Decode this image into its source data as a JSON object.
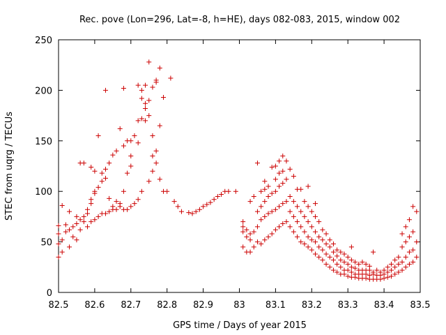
{
  "chart_data": {
    "type": "scatter",
    "title": "Rec. pove (Lon=296, Lat=-8, h=HE), days 082-083, 2015, window 002",
    "xlabel": "GPS time / Days of year 2015",
    "ylabel": "STEC from uqrg / TECUs",
    "xlim": [
      82.5,
      83.5
    ],
    "ylim": [
      0,
      250
    ],
    "xticks": [
      "82.5",
      "82.6",
      "82.7",
      "82.8",
      "82.9",
      "83",
      "83.1",
      "83.2",
      "83.3",
      "83.4",
      "83.5"
    ],
    "yticks": [
      "0",
      "50",
      "100",
      "150",
      "200",
      "250"
    ],
    "grid": false,
    "marker": "plus",
    "color": "#cc0000",
    "series": [
      {
        "name": "STEC",
        "points": [
          [
            82.5,
            35
          ],
          [
            82.5,
            48
          ],
          [
            82.5,
            58
          ],
          [
            82.5,
            66
          ],
          [
            82.51,
            40
          ],
          [
            82.51,
            52
          ],
          [
            82.51,
            86
          ],
          [
            82.52,
            60
          ],
          [
            82.52,
            67
          ],
          [
            82.53,
            45
          ],
          [
            82.53,
            62
          ],
          [
            82.53,
            80
          ],
          [
            82.54,
            55
          ],
          [
            82.54,
            65
          ],
          [
            82.55,
            52
          ],
          [
            82.55,
            68
          ],
          [
            82.55,
            75
          ],
          [
            82.56,
            62
          ],
          [
            82.56,
            72
          ],
          [
            82.56,
            128
          ],
          [
            82.57,
            70
          ],
          [
            82.57,
            75
          ],
          [
            82.57,
            128
          ],
          [
            82.58,
            65
          ],
          [
            82.58,
            78
          ],
          [
            82.58,
            82
          ],
          [
            82.59,
            70
          ],
          [
            82.59,
            88
          ],
          [
            82.59,
            92
          ],
          [
            82.59,
            124
          ],
          [
            82.6,
            72
          ],
          [
            82.6,
            98
          ],
          [
            82.6,
            100
          ],
          [
            82.6,
            120
          ],
          [
            82.61,
            75
          ],
          [
            82.61,
            104
          ],
          [
            82.61,
            155
          ],
          [
            82.62,
            78
          ],
          [
            82.62,
            110
          ],
          [
            82.62,
            118
          ],
          [
            82.63,
            78
          ],
          [
            82.63,
            113
          ],
          [
            82.63,
            122
          ],
          [
            82.63,
            200
          ],
          [
            82.64,
            80
          ],
          [
            82.64,
            93
          ],
          [
            82.64,
            128
          ],
          [
            82.65,
            82
          ],
          [
            82.65,
            85
          ],
          [
            82.65,
            136
          ],
          [
            82.66,
            82
          ],
          [
            82.66,
            90
          ],
          [
            82.66,
            140
          ],
          [
            82.67,
            85
          ],
          [
            82.67,
            88
          ],
          [
            82.67,
            162
          ],
          [
            82.68,
            82
          ],
          [
            82.68,
            100
          ],
          [
            82.68,
            145
          ],
          [
            82.68,
            202
          ],
          [
            82.69,
            82
          ],
          [
            82.69,
            118
          ],
          [
            82.69,
            150
          ],
          [
            82.7,
            85
          ],
          [
            82.7,
            125
          ],
          [
            82.7,
            135
          ],
          [
            82.7,
            150
          ],
          [
            82.71,
            88
          ],
          [
            82.71,
            155
          ],
          [
            82.72,
            92
          ],
          [
            82.72,
            148
          ],
          [
            82.72,
            170
          ],
          [
            82.72,
            205
          ],
          [
            82.73,
            100
          ],
          [
            82.73,
            172
          ],
          [
            82.73,
            192
          ],
          [
            82.73,
            200
          ],
          [
            82.74,
            170
          ],
          [
            82.74,
            182
          ],
          [
            82.74,
            187
          ],
          [
            82.74,
            205
          ],
          [
            82.75,
            110
          ],
          [
            82.75,
            175
          ],
          [
            82.75,
            190
          ],
          [
            82.75,
            228
          ],
          [
            82.76,
            120
          ],
          [
            82.76,
            135
          ],
          [
            82.76,
            155
          ],
          [
            82.76,
            203
          ],
          [
            82.77,
            128
          ],
          [
            82.77,
            140
          ],
          [
            82.77,
            208
          ],
          [
            82.77,
            210
          ],
          [
            82.78,
            112
          ],
          [
            82.78,
            165
          ],
          [
            82.78,
            222
          ],
          [
            82.79,
            100
          ],
          [
            82.79,
            193
          ],
          [
            82.8,
            100
          ],
          [
            82.81,
            212
          ],
          [
            82.82,
            90
          ],
          [
            82.83,
            85
          ],
          [
            82.84,
            80
          ],
          [
            82.86,
            79
          ],
          [
            82.87,
            78
          ],
          [
            82.88,
            80
          ],
          [
            82.89,
            82
          ],
          [
            82.9,
            85
          ],
          [
            82.91,
            87
          ],
          [
            82.92,
            89
          ],
          [
            82.93,
            92
          ],
          [
            82.94,
            95
          ],
          [
            82.95,
            97
          ],
          [
            82.96,
            100
          ],
          [
            82.97,
            100
          ],
          [
            82.99,
            100
          ],
          [
            83.01,
            45
          ],
          [
            83.01,
            60
          ],
          [
            83.01,
            65
          ],
          [
            83.01,
            70
          ],
          [
            83.02,
            40
          ],
          [
            83.02,
            55
          ],
          [
            83.02,
            62
          ],
          [
            83.03,
            40
          ],
          [
            83.03,
            52
          ],
          [
            83.03,
            58
          ],
          [
            83.03,
            90
          ],
          [
            83.04,
            45
          ],
          [
            83.04,
            60
          ],
          [
            83.04,
            95
          ],
          [
            83.05,
            50
          ],
          [
            83.05,
            65
          ],
          [
            83.05,
            80
          ],
          [
            83.05,
            128
          ],
          [
            83.06,
            48
          ],
          [
            83.06,
            72
          ],
          [
            83.06,
            85
          ],
          [
            83.06,
            100
          ],
          [
            83.07,
            52
          ],
          [
            83.07,
            75
          ],
          [
            83.07,
            90
          ],
          [
            83.07,
            102
          ],
          [
            83.07,
            110
          ],
          [
            83.08,
            55
          ],
          [
            83.08,
            78
          ],
          [
            83.08,
            95
          ],
          [
            83.08,
            105
          ],
          [
            83.09,
            58
          ],
          [
            83.09,
            80
          ],
          [
            83.09,
            98
          ],
          [
            83.09,
            124
          ],
          [
            83.1,
            62
          ],
          [
            83.1,
            82
          ],
          [
            83.1,
            100
          ],
          [
            83.1,
            112
          ],
          [
            83.1,
            125
          ],
          [
            83.11,
            65
          ],
          [
            83.11,
            85
          ],
          [
            83.11,
            105
          ],
          [
            83.11,
            118
          ],
          [
            83.11,
            130
          ],
          [
            83.12,
            68
          ],
          [
            83.12,
            88
          ],
          [
            83.12,
            108
          ],
          [
            83.12,
            120
          ],
          [
            83.12,
            135
          ],
          [
            83.13,
            70
          ],
          [
            83.13,
            90
          ],
          [
            83.13,
            112
          ],
          [
            83.13,
            130
          ],
          [
            83.14,
            65
          ],
          [
            83.14,
            80
          ],
          [
            83.14,
            95
          ],
          [
            83.14,
            122
          ],
          [
            83.15,
            60
          ],
          [
            83.15,
            75
          ],
          [
            83.15,
            90
          ],
          [
            83.15,
            115
          ],
          [
            83.16,
            55
          ],
          [
            83.16,
            70
          ],
          [
            83.16,
            85
          ],
          [
            83.16,
            102
          ],
          [
            83.17,
            50
          ],
          [
            83.17,
            65
          ],
          [
            83.17,
            80
          ],
          [
            83.17,
            102
          ],
          [
            83.18,
            48
          ],
          [
            83.18,
            60
          ],
          [
            83.18,
            75
          ],
          [
            83.18,
            90
          ],
          [
            83.19,
            45
          ],
          [
            83.19,
            55
          ],
          [
            83.19,
            70
          ],
          [
            83.19,
            85
          ],
          [
            83.19,
            105
          ],
          [
            83.2,
            42
          ],
          [
            83.2,
            52
          ],
          [
            83.2,
            65
          ],
          [
            83.2,
            80
          ],
          [
            83.21,
            38
          ],
          [
            83.21,
            50
          ],
          [
            83.21,
            60
          ],
          [
            83.21,
            75
          ],
          [
            83.21,
            88
          ],
          [
            83.22,
            35
          ],
          [
            83.22,
            45
          ],
          [
            83.22,
            55
          ],
          [
            83.22,
            70
          ],
          [
            83.23,
            32
          ],
          [
            83.23,
            42
          ],
          [
            83.23,
            52
          ],
          [
            83.23,
            62
          ],
          [
            83.24,
            28
          ],
          [
            83.24,
            38
          ],
          [
            83.24,
            48
          ],
          [
            83.24,
            58
          ],
          [
            83.25,
            25
          ],
          [
            83.25,
            35
          ],
          [
            83.25,
            45
          ],
          [
            83.25,
            52
          ],
          [
            83.26,
            22
          ],
          [
            83.26,
            32
          ],
          [
            83.26,
            40
          ],
          [
            83.26,
            48
          ],
          [
            83.27,
            20
          ],
          [
            83.27,
            28
          ],
          [
            83.27,
            36
          ],
          [
            83.27,
            42
          ],
          [
            83.28,
            18
          ],
          [
            83.28,
            25
          ],
          [
            83.28,
            32
          ],
          [
            83.28,
            40
          ],
          [
            83.29,
            18
          ],
          [
            83.29,
            22
          ],
          [
            83.29,
            30
          ],
          [
            83.29,
            38
          ],
          [
            83.3,
            16
          ],
          [
            83.3,
            22
          ],
          [
            83.3,
            28
          ],
          [
            83.3,
            35
          ],
          [
            83.31,
            15
          ],
          [
            83.31,
            20
          ],
          [
            83.31,
            25
          ],
          [
            83.31,
            32
          ],
          [
            83.31,
            45
          ],
          [
            83.32,
            15
          ],
          [
            83.32,
            18
          ],
          [
            83.32,
            24
          ],
          [
            83.32,
            30
          ],
          [
            83.33,
            14
          ],
          [
            83.33,
            18
          ],
          [
            83.33,
            22
          ],
          [
            83.33,
            28
          ],
          [
            83.34,
            14
          ],
          [
            83.34,
            18
          ],
          [
            83.34,
            22
          ],
          [
            83.34,
            30
          ],
          [
            83.35,
            14
          ],
          [
            83.35,
            18
          ],
          [
            83.35,
            22
          ],
          [
            83.35,
            28
          ],
          [
            83.36,
            13
          ],
          [
            83.36,
            17
          ],
          [
            83.36,
            22
          ],
          [
            83.36,
            26
          ],
          [
            83.37,
            13
          ],
          [
            83.37,
            18
          ],
          [
            83.37,
            20
          ],
          [
            83.37,
            40
          ],
          [
            83.38,
            13
          ],
          [
            83.38,
            17
          ],
          [
            83.38,
            22
          ],
          [
            83.39,
            13
          ],
          [
            83.39,
            17
          ],
          [
            83.39,
            20
          ],
          [
            83.4,
            14
          ],
          [
            83.4,
            18
          ],
          [
            83.4,
            22
          ],
          [
            83.41,
            15
          ],
          [
            83.41,
            20
          ],
          [
            83.41,
            25
          ],
          [
            83.42,
            16
          ],
          [
            83.42,
            22
          ],
          [
            83.42,
            28
          ],
          [
            83.43,
            18
          ],
          [
            83.43,
            25
          ],
          [
            83.43,
            32
          ],
          [
            83.44,
            20
          ],
          [
            83.44,
            28
          ],
          [
            83.44,
            35
          ],
          [
            83.45,
            22
          ],
          [
            83.45,
            30
          ],
          [
            83.45,
            45
          ],
          [
            83.45,
            58
          ],
          [
            83.46,
            25
          ],
          [
            83.46,
            35
          ],
          [
            83.46,
            50
          ],
          [
            83.46,
            65
          ],
          [
            83.47,
            28
          ],
          [
            83.47,
            40
          ],
          [
            83.47,
            55
          ],
          [
            83.47,
            72
          ],
          [
            83.48,
            30
          ],
          [
            83.48,
            42
          ],
          [
            83.48,
            60
          ],
          [
            83.48,
            85
          ],
          [
            83.49,
            35
          ],
          [
            83.49,
            50
          ],
          [
            83.49,
            80
          ]
        ]
      }
    ]
  }
}
